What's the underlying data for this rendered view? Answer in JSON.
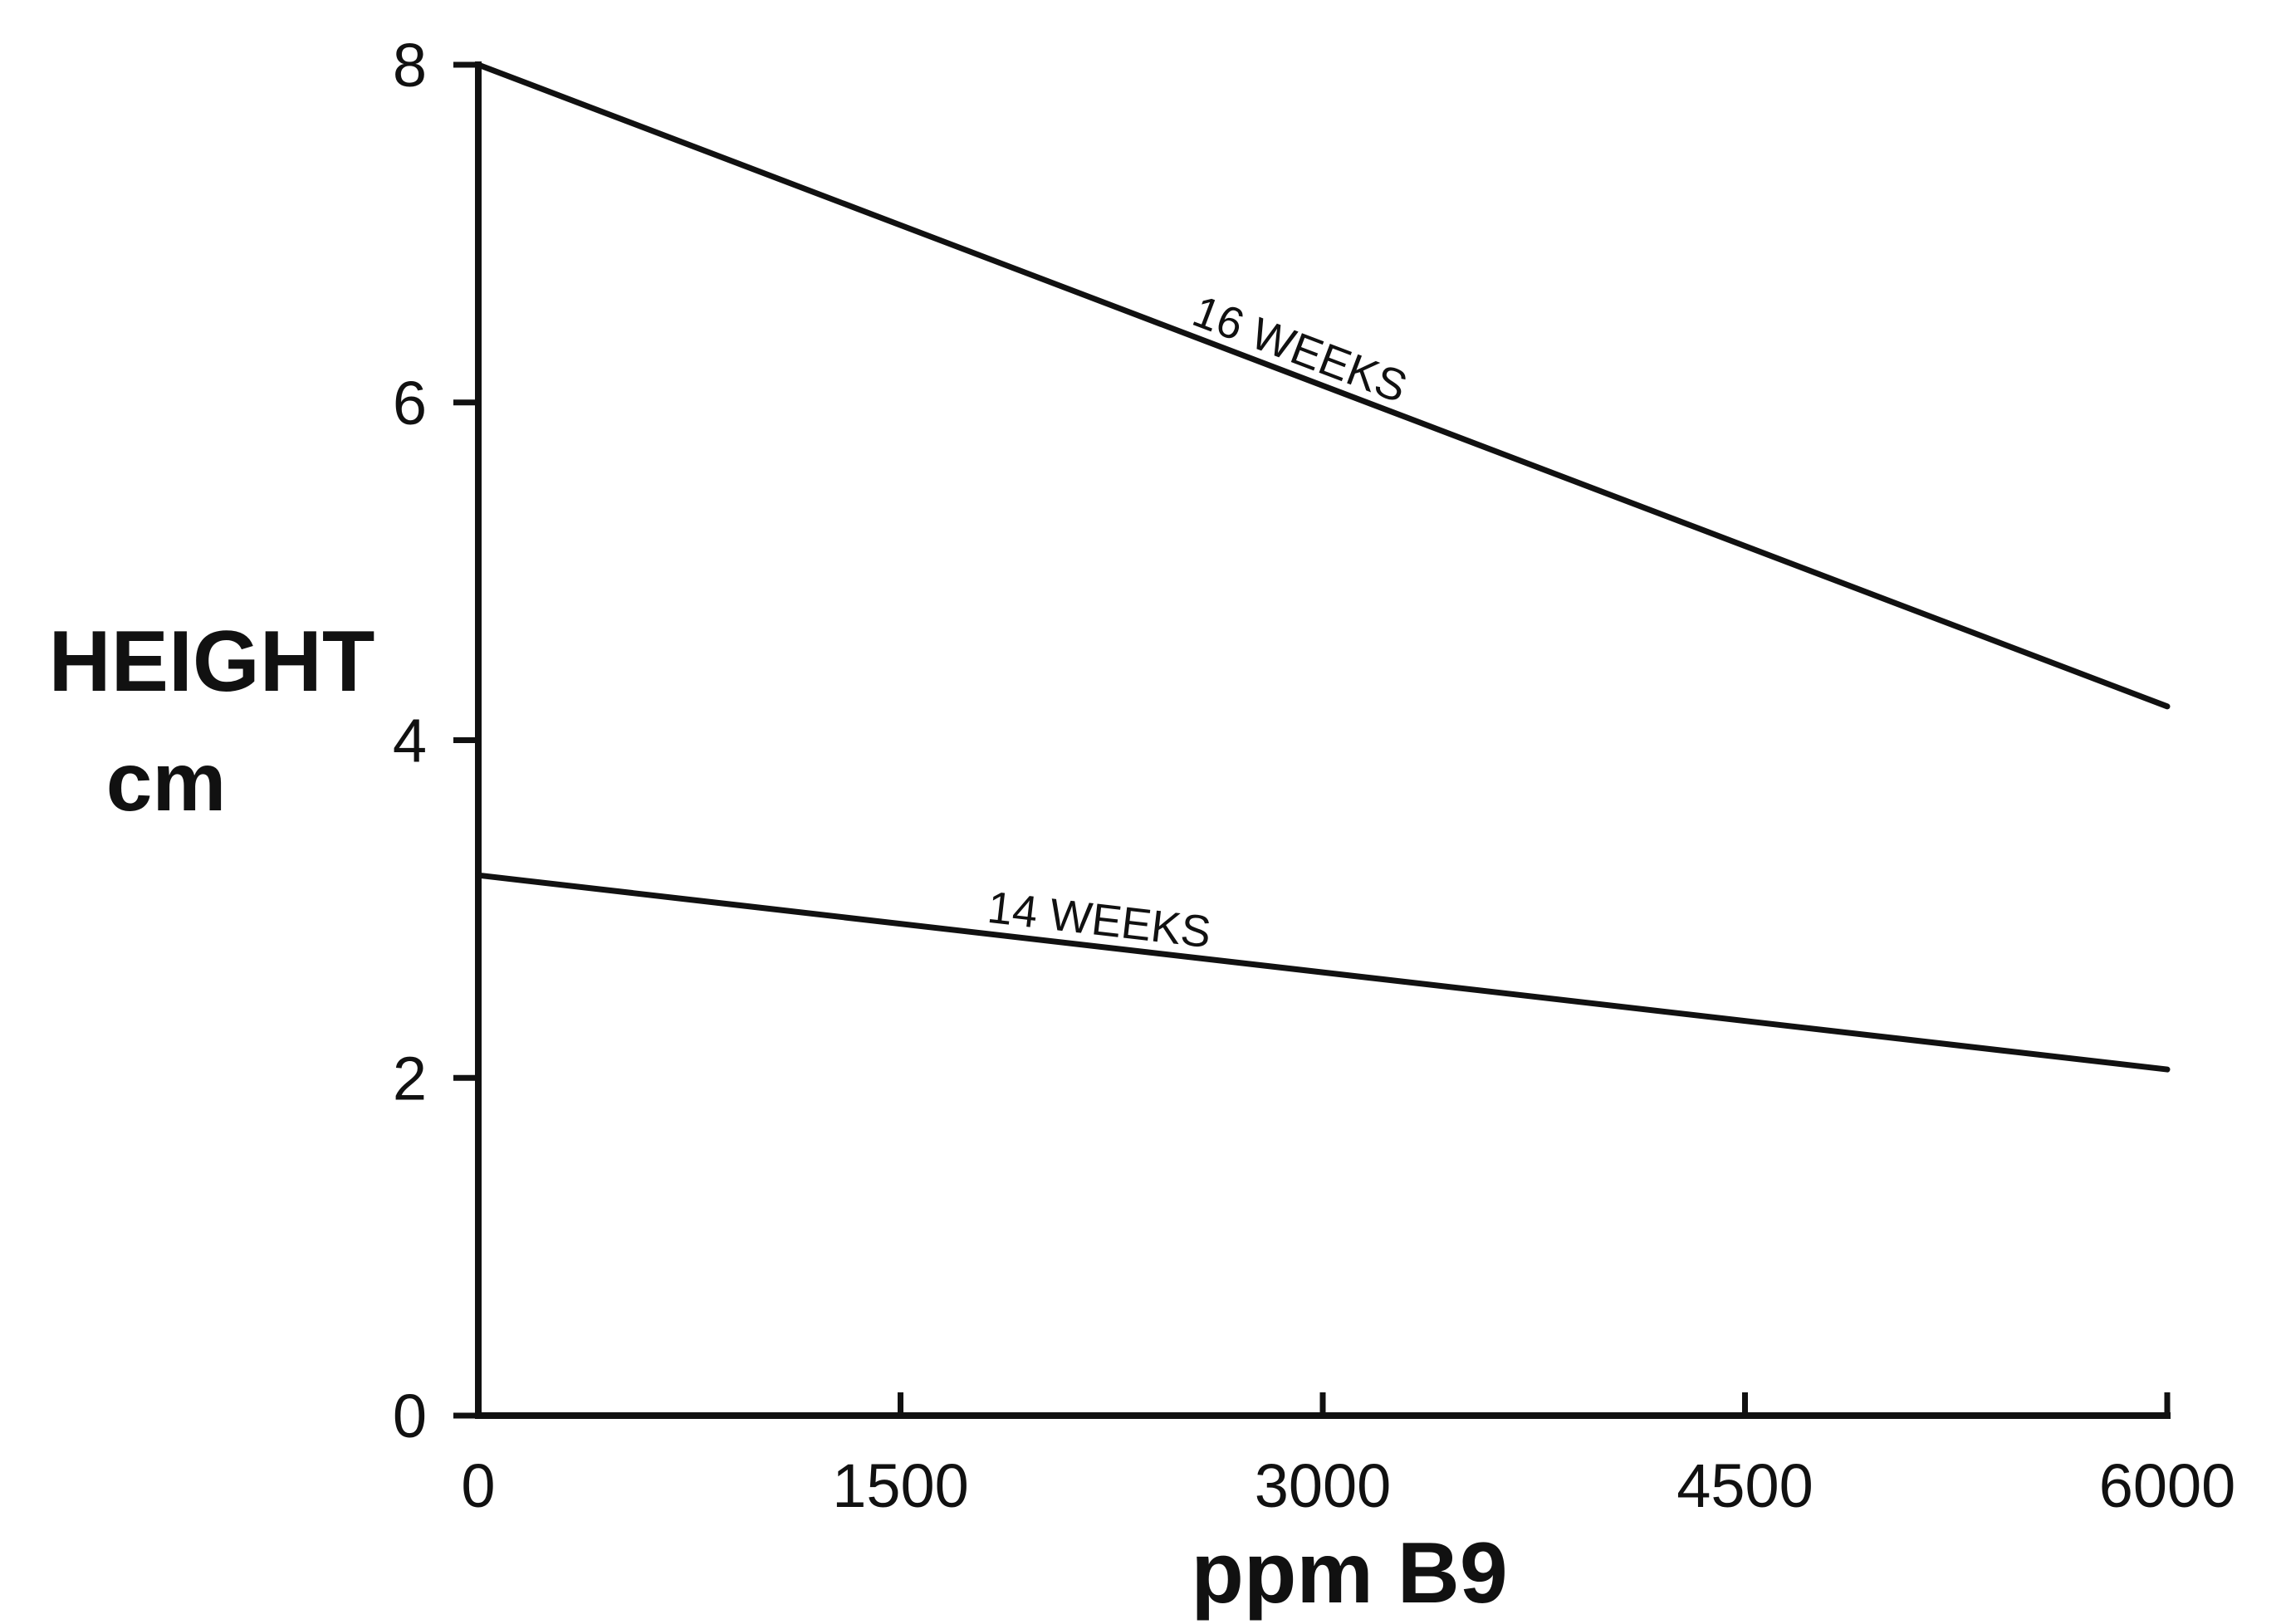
{
  "chart_data": {
    "type": "line",
    "xlabel": "ppm B9",
    "ylabel": [
      "HEIGHT",
      "cm"
    ],
    "xlim": [
      0,
      6000
    ],
    "ylim": [
      0,
      8
    ],
    "x_ticks": [
      0,
      1500,
      3000,
      4500,
      6000
    ],
    "x_tick_labels": [
      "0",
      "1500",
      "3000",
      "4500",
      "6000"
    ],
    "y_ticks": [
      0,
      2,
      4,
      6,
      8
    ],
    "y_tick_labels": [
      "0",
      "2",
      "4",
      "6",
      "8"
    ],
    "grid": false,
    "legend": "none",
    "series": [
      {
        "name": "16 WEEKS",
        "x": [
          0,
          6000
        ],
        "y": [
          8.0,
          4.2
        ],
        "label_at_x": 2900
      },
      {
        "name": "14 WEEKS",
        "x": [
          0,
          6000
        ],
        "y": [
          3.2,
          2.05
        ],
        "label_at_x": 2200
      }
    ],
    "colors": {
      "ink": "#111111",
      "background": "#ffffff"
    }
  }
}
